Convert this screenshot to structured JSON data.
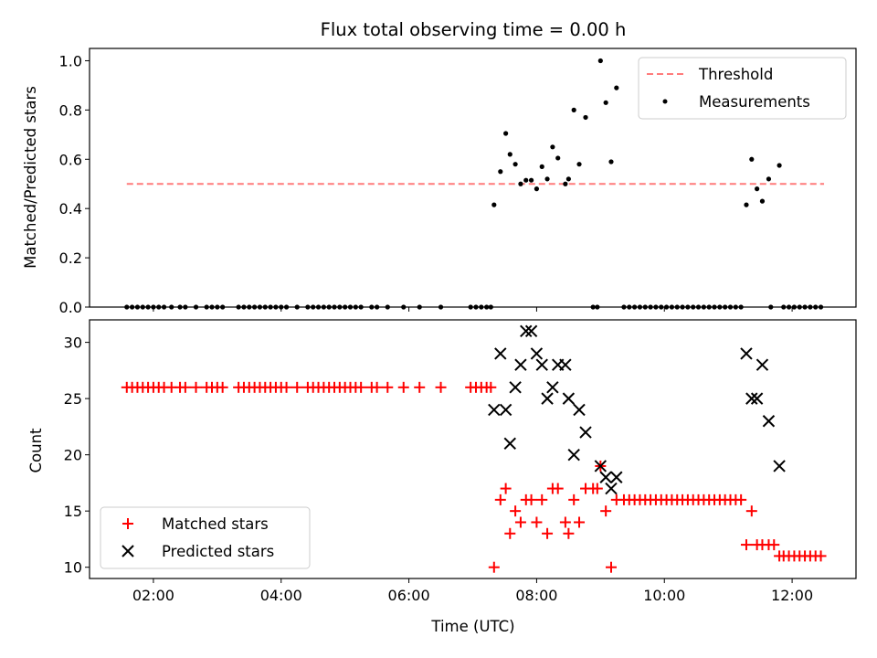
{
  "chart_data": [
    {
      "type": "scatter",
      "title": "Flux total observing time = 0.00 h",
      "ylabel": "Matched/Predicted stars",
      "xlabel": "",
      "xlim": [
        "01:00",
        "13:00"
      ],
      "ylim": [
        0,
        1.05
      ],
      "y_ticks": [
        0.0,
        0.2,
        0.4,
        0.6,
        0.8,
        1.0
      ],
      "y_tick_labels": [
        "0.0",
        "0.2",
        "0.4",
        "0.6",
        "0.8",
        "1.0"
      ],
      "legend_position": "top-right",
      "threshold": {
        "name": "Threshold",
        "value": 0.5,
        "x_range": [
          "01:35",
          "12:30"
        ],
        "color": "#ff7b7b",
        "style": "dashed"
      },
      "series": [
        {
          "name": "Measurements",
          "color": "#000000",
          "marker": "dot",
          "points": [
            [
              "01:35",
              0
            ],
            [
              "01:40",
              0
            ],
            [
              "01:45",
              0
            ],
            [
              "01:50",
              0
            ],
            [
              "01:55",
              0
            ],
            [
              "02:00",
              0
            ],
            [
              "02:05",
              0
            ],
            [
              "02:10",
              0
            ],
            [
              "02:17",
              0
            ],
            [
              "02:25",
              0
            ],
            [
              "02:30",
              0
            ],
            [
              "02:40",
              0
            ],
            [
              "02:50",
              0
            ],
            [
              "02:55",
              0
            ],
            [
              "03:00",
              0
            ],
            [
              "03:05",
              0
            ],
            [
              "03:20",
              0
            ],
            [
              "03:25",
              0
            ],
            [
              "03:30",
              0
            ],
            [
              "03:35",
              0
            ],
            [
              "03:40",
              0
            ],
            [
              "03:45",
              0
            ],
            [
              "03:50",
              0
            ],
            [
              "03:55",
              0
            ],
            [
              "04:00",
              0
            ],
            [
              "04:05",
              0
            ],
            [
              "04:15",
              0
            ],
            [
              "04:25",
              0
            ],
            [
              "04:30",
              0
            ],
            [
              "04:35",
              0
            ],
            [
              "04:40",
              0
            ],
            [
              "04:45",
              0
            ],
            [
              "04:50",
              0
            ],
            [
              "04:55",
              0
            ],
            [
              "05:00",
              0
            ],
            [
              "05:05",
              0
            ],
            [
              "05:10",
              0
            ],
            [
              "05:15",
              0
            ],
            [
              "05:25",
              0
            ],
            [
              "05:30",
              0
            ],
            [
              "05:40",
              0
            ],
            [
              "05:55",
              0
            ],
            [
              "06:10",
              0
            ],
            [
              "06:30",
              0
            ],
            [
              "06:58",
              0
            ],
            [
              "07:03",
              0
            ],
            [
              "07:08",
              0
            ],
            [
              "07:13",
              0
            ],
            [
              "07:17",
              0
            ],
            [
              "07:20",
              0.415
            ],
            [
              "07:26",
              0.55
            ],
            [
              "07:31",
              0.705
            ],
            [
              "07:35",
              0.62
            ],
            [
              "07:40",
              0.58
            ],
            [
              "07:45",
              0.5
            ],
            [
              "07:50",
              0.515
            ],
            [
              "07:55",
              0.515
            ],
            [
              "08:00",
              0.48
            ],
            [
              "08:05",
              0.57
            ],
            [
              "08:10",
              0.52
            ],
            [
              "08:15",
              0.65
            ],
            [
              "08:20",
              0.605
            ],
            [
              "08:27",
              0.5
            ],
            [
              "08:30",
              0.52
            ],
            [
              "08:35",
              0.8
            ],
            [
              "08:40",
              0.58
            ],
            [
              "08:46",
              0.77
            ],
            [
              "08:53",
              0
            ],
            [
              "08:57",
              0
            ],
            [
              "09:00",
              1.0
            ],
            [
              "09:05",
              0.83
            ],
            [
              "09:10",
              0.59
            ],
            [
              "09:15",
              0.89
            ],
            [
              "09:22",
              0
            ],
            [
              "09:27",
              0
            ],
            [
              "09:32",
              0
            ],
            [
              "09:37",
              0
            ],
            [
              "09:42",
              0
            ],
            [
              "09:47",
              0
            ],
            [
              "09:52",
              0
            ],
            [
              "09:57",
              0
            ],
            [
              "10:02",
              0
            ],
            [
              "10:07",
              0
            ],
            [
              "10:12",
              0
            ],
            [
              "10:17",
              0
            ],
            [
              "10:22",
              0
            ],
            [
              "10:27",
              0
            ],
            [
              "10:32",
              0
            ],
            [
              "10:37",
              0
            ],
            [
              "10:42",
              0
            ],
            [
              "10:47",
              0
            ],
            [
              "10:52",
              0
            ],
            [
              "10:57",
              0
            ],
            [
              "11:02",
              0
            ],
            [
              "11:07",
              0
            ],
            [
              "11:12",
              0
            ],
            [
              "11:17",
              0.415
            ],
            [
              "11:22",
              0.6
            ],
            [
              "11:27",
              0.48
            ],
            [
              "11:32",
              0.43
            ],
            [
              "11:38",
              0.52
            ],
            [
              "11:40",
              0
            ],
            [
              "11:48",
              0.575
            ],
            [
              "11:52",
              0
            ],
            [
              "11:57",
              0
            ],
            [
              "12:02",
              0
            ],
            [
              "12:07",
              0
            ],
            [
              "12:12",
              0
            ],
            [
              "12:17",
              0
            ],
            [
              "12:22",
              0
            ],
            [
              "12:27",
              0
            ]
          ]
        }
      ]
    },
    {
      "type": "scatter",
      "title": "",
      "ylabel": "Count",
      "xlabel": "Time (UTC)",
      "xlim": [
        "01:00",
        "13:00"
      ],
      "ylim": [
        9,
        32
      ],
      "y_ticks": [
        10,
        15,
        20,
        25,
        30
      ],
      "y_tick_labels": [
        "10",
        "15",
        "20",
        "25",
        "30"
      ],
      "x_ticks": [
        "02:00",
        "04:00",
        "06:00",
        "08:00",
        "10:00",
        "12:00"
      ],
      "x_tick_labels": [
        "02:00",
        "04:00",
        "06:00",
        "08:00",
        "10:00",
        "12:00"
      ],
      "legend_position": "bottom-left",
      "series": [
        {
          "name": "Matched stars",
          "color": "#ff0000",
          "marker": "plus",
          "points": [
            [
              "01:35",
              26
            ],
            [
              "01:40",
              26
            ],
            [
              "01:45",
              26
            ],
            [
              "01:50",
              26
            ],
            [
              "01:55",
              26
            ],
            [
              "02:00",
              26
            ],
            [
              "02:05",
              26
            ],
            [
              "02:10",
              26
            ],
            [
              "02:17",
              26
            ],
            [
              "02:25",
              26
            ],
            [
              "02:30",
              26
            ],
            [
              "02:40",
              26
            ],
            [
              "02:50",
              26
            ],
            [
              "02:55",
              26
            ],
            [
              "03:00",
              26
            ],
            [
              "03:05",
              26
            ],
            [
              "03:20",
              26
            ],
            [
              "03:25",
              26
            ],
            [
              "03:30",
              26
            ],
            [
              "03:35",
              26
            ],
            [
              "03:40",
              26
            ],
            [
              "03:45",
              26
            ],
            [
              "03:50",
              26
            ],
            [
              "03:55",
              26
            ],
            [
              "04:00",
              26
            ],
            [
              "04:05",
              26
            ],
            [
              "04:15",
              26
            ],
            [
              "04:25",
              26
            ],
            [
              "04:30",
              26
            ],
            [
              "04:35",
              26
            ],
            [
              "04:40",
              26
            ],
            [
              "04:45",
              26
            ],
            [
              "04:50",
              26
            ],
            [
              "04:55",
              26
            ],
            [
              "05:00",
              26
            ],
            [
              "05:05",
              26
            ],
            [
              "05:10",
              26
            ],
            [
              "05:15",
              26
            ],
            [
              "05:25",
              26
            ],
            [
              "05:30",
              26
            ],
            [
              "05:40",
              26
            ],
            [
              "05:55",
              26
            ],
            [
              "06:10",
              26
            ],
            [
              "06:30",
              26
            ],
            [
              "06:58",
              26
            ],
            [
              "07:03",
              26
            ],
            [
              "07:08",
              26
            ],
            [
              "07:13",
              26
            ],
            [
              "07:17",
              26
            ],
            [
              "07:20",
              10
            ],
            [
              "07:26",
              16
            ],
            [
              "07:31",
              17
            ],
            [
              "07:35",
              13
            ],
            [
              "07:40",
              15
            ],
            [
              "07:45",
              14
            ],
            [
              "07:50",
              16
            ],
            [
              "07:55",
              16
            ],
            [
              "08:00",
              14
            ],
            [
              "08:05",
              16
            ],
            [
              "08:10",
              13
            ],
            [
              "08:15",
              17
            ],
            [
              "08:20",
              17
            ],
            [
              "08:27",
              14
            ],
            [
              "08:30",
              13
            ],
            [
              "08:35",
              16
            ],
            [
              "08:40",
              14
            ],
            [
              "08:46",
              17
            ],
            [
              "08:53",
              17
            ],
            [
              "08:57",
              17
            ],
            [
              "09:00",
              19
            ],
            [
              "09:05",
              15
            ],
            [
              "09:10",
              10
            ],
            [
              "09:15",
              16
            ],
            [
              "09:22",
              16
            ],
            [
              "09:27",
              16
            ],
            [
              "09:32",
              16
            ],
            [
              "09:37",
              16
            ],
            [
              "09:42",
              16
            ],
            [
              "09:47",
              16
            ],
            [
              "09:52",
              16
            ],
            [
              "09:57",
              16
            ],
            [
              "10:02",
              16
            ],
            [
              "10:07",
              16
            ],
            [
              "10:12",
              16
            ],
            [
              "10:17",
              16
            ],
            [
              "10:22",
              16
            ],
            [
              "10:27",
              16
            ],
            [
              "10:32",
              16
            ],
            [
              "10:37",
              16
            ],
            [
              "10:42",
              16
            ],
            [
              "10:47",
              16
            ],
            [
              "10:52",
              16
            ],
            [
              "10:57",
              16
            ],
            [
              "11:02",
              16
            ],
            [
              "11:07",
              16
            ],
            [
              "11:12",
              16
            ],
            [
              "11:17",
              12
            ],
            [
              "11:22",
              15
            ],
            [
              "11:27",
              12
            ],
            [
              "11:32",
              12
            ],
            [
              "11:38",
              12
            ],
            [
              "11:43",
              12
            ],
            [
              "11:48",
              11
            ],
            [
              "11:52",
              11
            ],
            [
              "11:57",
              11
            ],
            [
              "12:02",
              11
            ],
            [
              "12:07",
              11
            ],
            [
              "12:12",
              11
            ],
            [
              "12:17",
              11
            ],
            [
              "12:22",
              11
            ],
            [
              "12:27",
              11
            ]
          ]
        },
        {
          "name": "Predicted stars",
          "color": "#000000",
          "marker": "x",
          "points": [
            [
              "07:20",
              24
            ],
            [
              "07:26",
              29
            ],
            [
              "07:31",
              24
            ],
            [
              "07:35",
              21
            ],
            [
              "07:40",
              26
            ],
            [
              "07:45",
              28
            ],
            [
              "07:50",
              31
            ],
            [
              "07:55",
              31
            ],
            [
              "08:00",
              29
            ],
            [
              "08:05",
              28
            ],
            [
              "08:10",
              25
            ],
            [
              "08:15",
              26
            ],
            [
              "08:20",
              28
            ],
            [
              "08:27",
              28
            ],
            [
              "08:30",
              25
            ],
            [
              "08:35",
              20
            ],
            [
              "08:40",
              24
            ],
            [
              "08:46",
              22
            ],
            [
              "09:00",
              19
            ],
            [
              "09:05",
              18
            ],
            [
              "09:10",
              17
            ],
            [
              "09:15",
              18
            ],
            [
              "11:17",
              29
            ],
            [
              "11:22",
              25
            ],
            [
              "11:27",
              25
            ],
            [
              "11:32",
              28
            ],
            [
              "11:38",
              23
            ],
            [
              "11:48",
              19
            ]
          ]
        }
      ]
    }
  ]
}
